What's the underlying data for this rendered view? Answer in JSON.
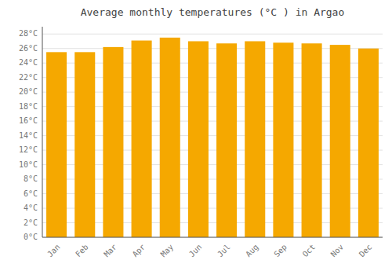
{
  "chart_data": {
    "type": "bar",
    "title": "Average monthly temperatures (°C ) in Argao",
    "categories": [
      "Jan",
      "Feb",
      "Mar",
      "Apr",
      "May",
      "Jun",
      "Jul",
      "Aug",
      "Sep",
      "Oct",
      "Nov",
      "Dec"
    ],
    "values": [
      25.5,
      25.5,
      26.2,
      27.1,
      27.5,
      27.0,
      26.7,
      27.0,
      26.8,
      26.7,
      26.5,
      26.0
    ],
    "color": "#F5A800",
    "ylim": [
      0,
      29
    ],
    "yticks": [
      {
        "value": 0,
        "label": "0°C"
      },
      {
        "value": 2,
        "label": "2°C"
      },
      {
        "value": 4,
        "label": "4°C"
      },
      {
        "value": 6,
        "label": "6°C"
      },
      {
        "value": 8,
        "label": "8°C"
      },
      {
        "value": 10,
        "label": "10°C"
      },
      {
        "value": 12,
        "label": "12°C"
      },
      {
        "value": 14,
        "label": "14°C"
      },
      {
        "value": 16,
        "label": "16°C"
      },
      {
        "value": 18,
        "label": "18°C"
      },
      {
        "value": 20,
        "label": "20°C"
      },
      {
        "value": 22,
        "label": "22°C"
      },
      {
        "value": 24,
        "label": "24°C"
      },
      {
        "value": 26,
        "label": "26°C"
      },
      {
        "value": 28,
        "label": "28°C"
      }
    ],
    "grid": true
  }
}
